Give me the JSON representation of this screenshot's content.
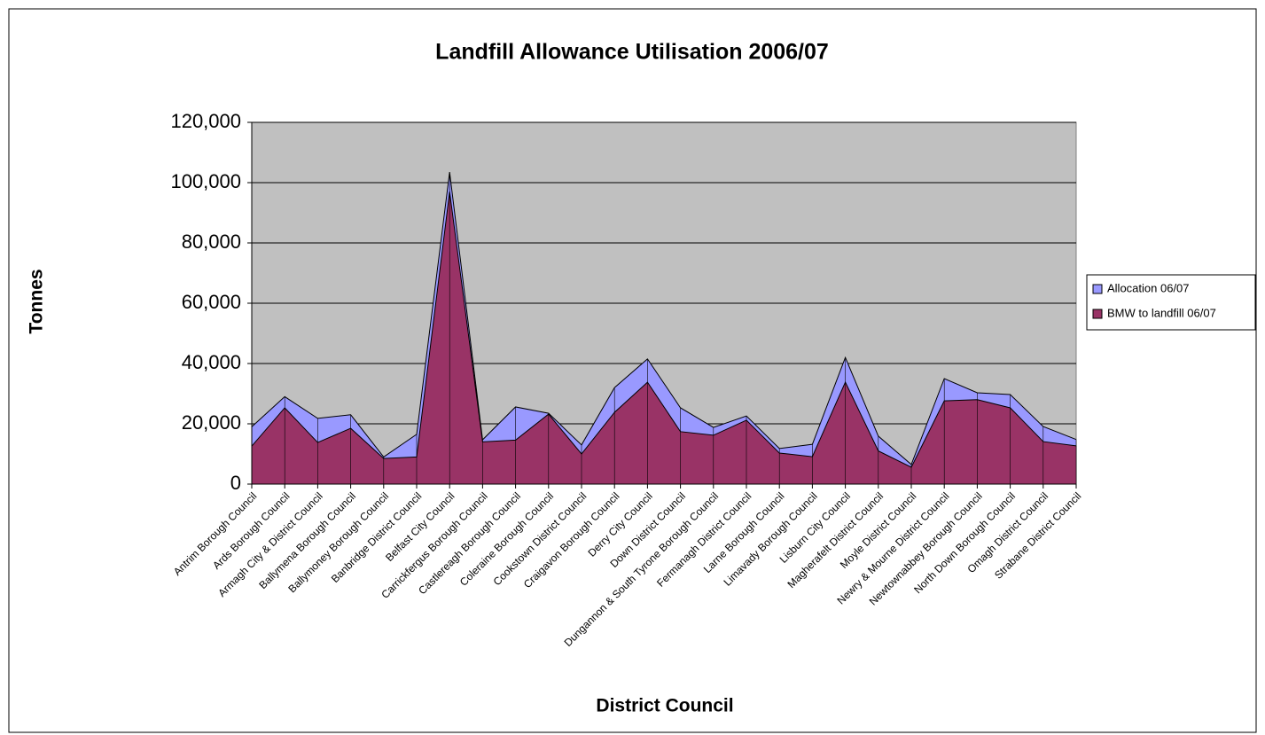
{
  "chart_data": {
    "type": "area",
    "title": "Landfill Allowance Utilisation 2006/07",
    "x_label": "District Council",
    "y_label": "Tonnes",
    "categories": [
      "Antrim Borough Council",
      "Ards Borough Council",
      "Armagh City & District Council",
      "Ballymena Borough Council",
      "Ballymoney Borough Council",
      "Banbridge District Council",
      "Belfast City Council",
      "Carrickfergus Borough Council",
      "Castlereagh Borough Council",
      "Coleraine Borough Council",
      "Cookstown District Council",
      "Craigavon Borough Council",
      "Derry City Council",
      "Down District Council",
      "Dungannon & South Tyrone Borough Council",
      "Fermanagh District Council",
      "Larne Borough Council",
      "Limavady Borough Council",
      "Lisburn City Council",
      "Magherafelt District Council",
      "Moyle District Council",
      "Newry & Mourne District Council",
      "Newtownabbey Borough Council",
      "North Down Borough Council",
      "Omagh District Council",
      "Strabane District Council"
    ],
    "series": [
      {
        "name": "Allocation 06/07",
        "color": "#9999ff",
        "values": [
          19000,
          29000,
          21800,
          23000,
          9000,
          16500,
          103500,
          14700,
          25600,
          23500,
          13000,
          32000,
          41500,
          25300,
          18800,
          22600,
          11800,
          13200,
          42000,
          15900,
          6500,
          35000,
          30300,
          29700,
          19100,
          14800
        ]
      },
      {
        "name": "BMW to landfill 06/07",
        "color": "#993366",
        "values": [
          12600,
          25300,
          13800,
          18500,
          8500,
          9000,
          97000,
          14000,
          14600,
          23200,
          10000,
          23800,
          33800,
          17400,
          16200,
          21200,
          10300,
          9100,
          33800,
          11000,
          5600,
          27600,
          28000,
          25300,
          14100,
          12700
        ]
      }
    ],
    "ylim": [
      0,
      120000
    ],
    "yticks": [
      0,
      {
        "value": 20000,
        "label": "20,000"
      },
      {
        "value": 40000,
        "label": "40,000"
      },
      {
        "value": 60000,
        "label": "60,000"
      },
      {
        "value": 80000,
        "label": "80,000"
      },
      {
        "value": 100000,
        "label": "100,000"
      },
      {
        "value": 120000,
        "label": "120,000"
      }
    ],
    "grid": true,
    "legend": "right",
    "plot_background": "#c0c0c0"
  }
}
